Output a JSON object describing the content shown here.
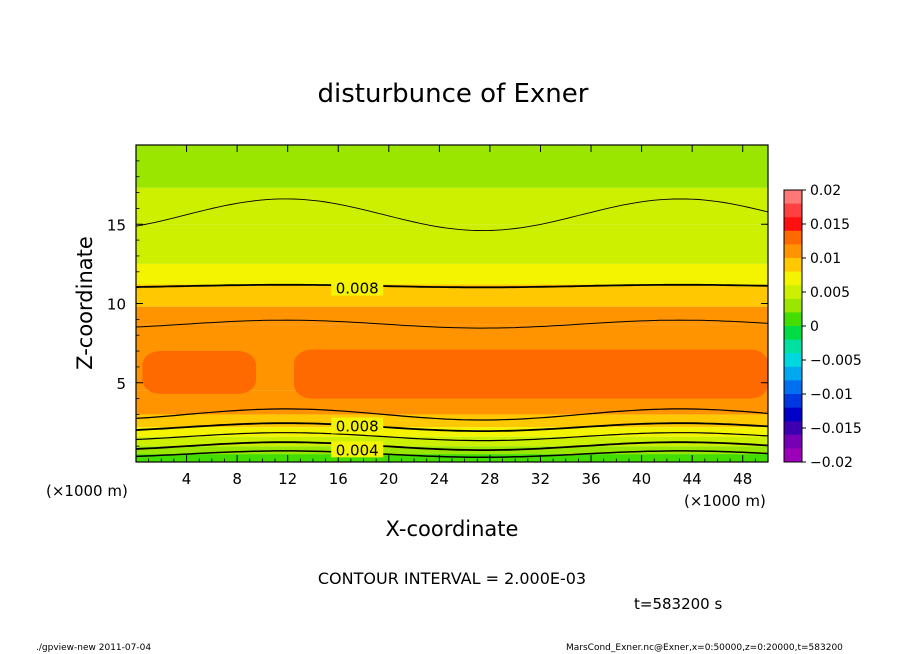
{
  "chart_data": {
    "type": "contour",
    "title": "disturbunce of Exner",
    "xlabel": "X-coordinate",
    "ylabel": "Z-coordinate",
    "x_unit": "(×1000 m)",
    "xlim": [
      0,
      50
    ],
    "ylim": [
      0,
      20
    ],
    "x_ticks": [
      4,
      8,
      12,
      16,
      20,
      24,
      28,
      32,
      36,
      40,
      44,
      48
    ],
    "y_ticks": [
      5,
      10,
      15
    ],
    "contour_labels": [
      {
        "text": "0.008",
        "x": 17.5,
        "z": 11.0
      },
      {
        "text": "0.008",
        "x": 17.5,
        "z": 2.3
      },
      {
        "text": "0.004",
        "x": 17.5,
        "z": 0.8
      }
    ],
    "contour_interval_text": "CONTOUR INTERVAL = 2.000E-03",
    "time_text": "t=583200 s",
    "colorbar": {
      "range": [
        -0.02,
        0.02
      ],
      "labels": [
        "0.02",
        "0.015",
        "0.01",
        "0.005",
        "0",
        "−0.005",
        "−0.01",
        "−0.015",
        "−0.02"
      ],
      "colors": [
        "#ff7878",
        "#ff4040",
        "#ff1010",
        "#ff6a00",
        "#ff9400",
        "#ffc800",
        "#f4f400",
        "#ccf000",
        "#9ae600",
        "#44dd00",
        "#00dd44",
        "#00e0a0",
        "#00d8e0",
        "#00a8f0",
        "#0070f0",
        "#0038e0",
        "#0000c8",
        "#3c00b0",
        "#7800b4",
        "#9c00b8"
      ]
    },
    "bands_bottom_to_top": [
      {
        "z": [
          0.0,
          0.5
        ],
        "color": "#44dd00"
      },
      {
        "z": [
          0.5,
          1.0
        ],
        "color": "#9ae600"
      },
      {
        "z": [
          1.0,
          1.6
        ],
        "color": "#ccf000"
      },
      {
        "z": [
          1.6,
          2.2
        ],
        "color": "#f4f400"
      },
      {
        "z": [
          2.2,
          3.0
        ],
        "color": "#ffc800"
      },
      {
        "z": [
          3.0,
          4.5
        ],
        "color": "#ff9400"
      },
      {
        "z": [
          4.5,
          8.7
        ],
        "color": "#ff9400"
      },
      {
        "z": [
          8.7,
          9.8
        ],
        "color": "#ff9400"
      },
      {
        "z": [
          9.8,
          11.2
        ],
        "color": "#ffc800"
      },
      {
        "z": [
          11.2,
          12.5
        ],
        "color": "#f4f400"
      },
      {
        "z": [
          12.5,
          15.0
        ],
        "color": "#ccf000"
      },
      {
        "z": [
          15.0,
          17.3
        ],
        "color": "#ccf000"
      },
      {
        "z": [
          17.3,
          20.0
        ],
        "color": "#9ae600"
      }
    ],
    "core_blobs": [
      {
        "x": [
          0.5,
          9.5
        ],
        "z": [
          4.3,
          7.0
        ],
        "color": "#ff6a00"
      },
      {
        "x": [
          12.5,
          50
        ],
        "z": [
          4.0,
          7.1
        ],
        "color": "#ff6a00"
      }
    ]
  },
  "footer": {
    "left": "./gpview-new   2011-07-04",
    "right": "MarsCond_Exner.nc@Exner,x=0:50000,z=0:20000,t=583200"
  }
}
